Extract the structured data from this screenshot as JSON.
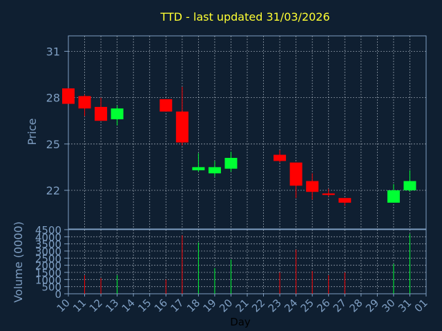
{
  "chart_data": [
    {
      "type": "candlestick",
      "title": "TTD - last updated 31/03/2026",
      "xlabel": "",
      "ylabel": "Price",
      "ylim": [
        19.5,
        32
      ],
      "yticks": [
        22,
        25,
        28,
        31
      ],
      "grid": true,
      "colors": {
        "up": "#00ff33",
        "down": "#ff0000",
        "grid": "#c8d2dc",
        "axis": "#7f9fc3"
      },
      "candles": [
        {
          "day": "10",
          "open": 28.6,
          "high": 28.6,
          "low": 27.6,
          "close": 27.6
        },
        {
          "day": "11",
          "open": 28.1,
          "high": 28.2,
          "low": 26.8,
          "close": 27.3
        },
        {
          "day": "12",
          "open": 27.4,
          "high": 28.0,
          "low": 26.5,
          "close": 26.5
        },
        {
          "day": "13",
          "open": 26.6,
          "high": 27.5,
          "low": 26.2,
          "close": 27.3
        },
        {
          "day": "16",
          "open": 27.9,
          "high": 27.9,
          "low": 27.1,
          "close": 27.1
        },
        {
          "day": "17",
          "open": 27.1,
          "high": 28.7,
          "low": 24.9,
          "close": 25.1
        },
        {
          "day": "18",
          "open": 23.3,
          "high": 24.4,
          "low": 23.2,
          "close": 23.5
        },
        {
          "day": "19",
          "open": 23.1,
          "high": 23.9,
          "low": 22.9,
          "close": 23.5
        },
        {
          "day": "20",
          "open": 23.4,
          "high": 24.5,
          "low": 23.2,
          "close": 24.1
        },
        {
          "day": "23",
          "open": 24.3,
          "high": 24.6,
          "low": 23.8,
          "close": 23.9
        },
        {
          "day": "24",
          "open": 23.8,
          "high": 23.8,
          "low": 21.5,
          "close": 22.3
        },
        {
          "day": "25",
          "open": 22.6,
          "high": 23.1,
          "low": 21.4,
          "close": 21.9
        },
        {
          "day": "26",
          "open": 21.8,
          "high": 22.1,
          "low": 21.6,
          "close": 21.7
        },
        {
          "day": "27",
          "open": 21.5,
          "high": 21.5,
          "low": 21.0,
          "close": 21.2
        },
        {
          "day": "30",
          "open": 21.2,
          "high": 22.4,
          "low": 21.2,
          "close": 22.0
        },
        {
          "day": "31",
          "open": 22.0,
          "high": 23.3,
          "low": 21.9,
          "close": 22.6
        }
      ]
    },
    {
      "type": "bar",
      "title": "",
      "ylabel": "Volume (0000)",
      "xlabel": "Day",
      "ylim": [
        0,
        4500
      ],
      "yticks": [
        0,
        500,
        1000,
        1500,
        2000,
        2500,
        3000,
        3500,
        4000,
        4500
      ],
      "xticks": [
        "10",
        "11",
        "12",
        "13",
        "14",
        "15",
        "16",
        "17",
        "18",
        "19",
        "20",
        "21",
        "22",
        "23",
        "24",
        "25",
        "26",
        "27",
        "28",
        "29",
        "30",
        "31",
        "01"
      ],
      "grid": true,
      "values": [
        {
          "day": "10",
          "volume": 0,
          "dir": "down"
        },
        {
          "day": "11",
          "volume": 1300,
          "dir": "down"
        },
        {
          "day": "12",
          "volume": 1100,
          "dir": "down"
        },
        {
          "day": "13",
          "volume": 1300,
          "dir": "up"
        },
        {
          "day": "16",
          "volume": 1000,
          "dir": "down"
        },
        {
          "day": "17",
          "volume": 4100,
          "dir": "down"
        },
        {
          "day": "18",
          "volume": 3600,
          "dir": "up"
        },
        {
          "day": "19",
          "volume": 1800,
          "dir": "up"
        },
        {
          "day": "20",
          "volume": 2400,
          "dir": "up"
        },
        {
          "day": "23",
          "volume": 1500,
          "dir": "down"
        },
        {
          "day": "24",
          "volume": 3100,
          "dir": "down"
        },
        {
          "day": "25",
          "volume": 1600,
          "dir": "down"
        },
        {
          "day": "26",
          "volume": 1300,
          "dir": "down"
        },
        {
          "day": "27",
          "volume": 1500,
          "dir": "down"
        },
        {
          "day": "30",
          "volume": 2100,
          "dir": "up"
        },
        {
          "day": "31",
          "volume": 4200,
          "dir": "up"
        }
      ]
    }
  ]
}
